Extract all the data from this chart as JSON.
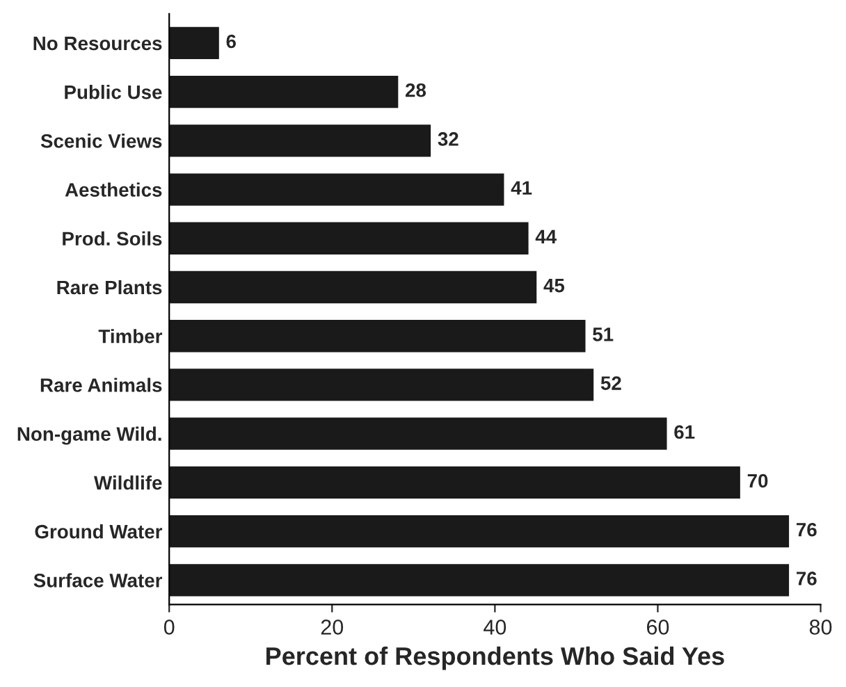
{
  "chart_data": {
    "type": "bar",
    "orientation": "horizontal",
    "xlabel": "Percent of Respondents Who Said Yes",
    "categories": [
      "No Resources",
      "Public Use",
      "Scenic Views",
      "Aesthetics",
      "Prod. Soils",
      "Rare Plants",
      "Timber",
      "Rare Animals",
      "Non-game Wild.",
      "Wildlife",
      "Ground Water",
      "Surface Water"
    ],
    "values": [
      6,
      28,
      32,
      41,
      44,
      45,
      51,
      52,
      61,
      70,
      76,
      76
    ],
    "color": "#1a1a1a",
    "xlim": [
      0,
      80
    ],
    "xticks": [
      0,
      20,
      40,
      60,
      80
    ],
    "data_labels": true,
    "grid": false,
    "legend": false
  }
}
